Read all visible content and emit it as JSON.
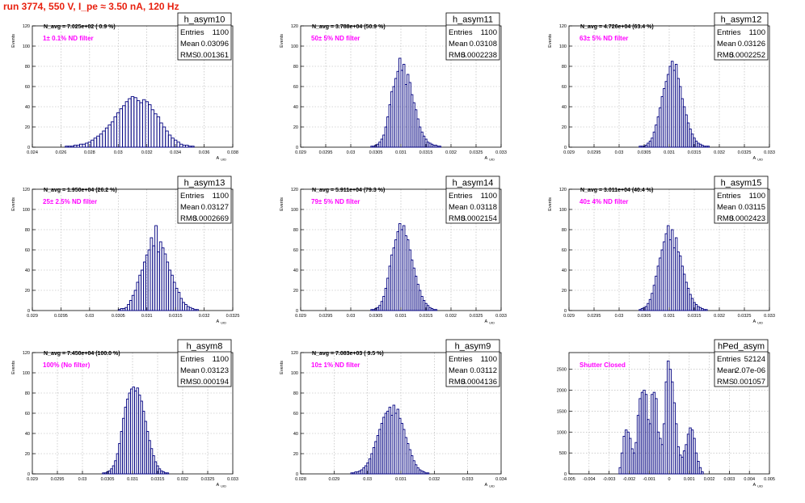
{
  "page_title": "run 3774,   550 V, I_pe ≈ 3.50 nA, 120 Hz",
  "label_color": "#ff00ff",
  "line_color": "#000080",
  "chart_data": [
    {
      "type": "bar",
      "hist_name": "h_asym10",
      "nav_text": "N_avg = 7.025e+02 ( 0.9 %)",
      "filter_text": "1± 0.1% ND filter",
      "xlabel": "A",
      "xlabel_sub": "UID",
      "ylabel": "Events",
      "xlim": [
        0.024,
        0.038
      ],
      "ylim": [
        0,
        120
      ],
      "xticks": [
        "0.024",
        "0.026",
        "0.028",
        "0.03",
        "0.032",
        "0.034",
        "0.036",
        "0.038"
      ],
      "yticks": [
        "0",
        "20",
        "40",
        "60",
        "80",
        "100",
        "120"
      ],
      "stats": [
        [
          "Entries",
          "1100"
        ],
        [
          "Mean",
          "0.03096"
        ],
        [
          "RMS",
          "0.001361"
        ]
      ],
      "bins": {
        "start": 0.0245,
        "width": 0.0002,
        "values": [
          0,
          0,
          0,
          0,
          0,
          0,
          0,
          0,
          0,
          1,
          1,
          1,
          2,
          2,
          3,
          3,
          4,
          5,
          7,
          9,
          11,
          13,
          16,
          19,
          22,
          25,
          30,
          34,
          38,
          41,
          45,
          48,
          50,
          49,
          46,
          44,
          47,
          45,
          42,
          37,
          33,
          30,
          24,
          20,
          16,
          12,
          9,
          7,
          5,
          3,
          2,
          2,
          1,
          1,
          0,
          0,
          0,
          0,
          0,
          0,
          0,
          0,
          0,
          0,
          0,
          0,
          0
        ]
      }
    },
    {
      "type": "bar",
      "hist_name": "h_asym11",
      "nav_text": "N_avg = 3.788e+04 (50.9 %)",
      "filter_text": "50± 5% ND filter",
      "xlabel": "A",
      "xlabel_sub": "UID",
      "ylabel": "Events",
      "xlim": [
        0.029,
        0.033
      ],
      "ylim": [
        0,
        120
      ],
      "xticks": [
        "0.029",
        "0.0295",
        "0.03",
        "0.0305",
        "0.031",
        "0.0315",
        "0.032",
        "0.0325",
        "0.033"
      ],
      "yticks": [
        "0",
        "20",
        "40",
        "60",
        "80",
        "100",
        "120"
      ],
      "stats": [
        [
          "Entries",
          "1100"
        ],
        [
          "Mean",
          "0.03108"
        ],
        [
          "RMS",
          "0.0002238"
        ]
      ],
      "bins": {
        "start": 0.0304,
        "width": 4e-05,
        "values": [
          1,
          1,
          2,
          3,
          5,
          8,
          12,
          20,
          30,
          42,
          55,
          60,
          68,
          75,
          88,
          76,
          82,
          62,
          72,
          64,
          52,
          44,
          37,
          28,
          20,
          15,
          11,
          8,
          5,
          4,
          3,
          2,
          2,
          1,
          1,
          0
        ]
      }
    },
    {
      "type": "bar",
      "hist_name": "h_asym12",
      "nav_text": "N_avg = 4.726e+04 (63.4 %)",
      "filter_text": "63± 5% ND filter",
      "xlabel": "A",
      "xlabel_sub": "UID",
      "ylabel": "Events",
      "xlim": [
        0.029,
        0.033
      ],
      "ylim": [
        0,
        120
      ],
      "xticks": [
        "0.029",
        "0.0295",
        "0.03",
        "0.0305",
        "0.031",
        "0.0315",
        "0.032",
        "0.0325",
        "0.033"
      ],
      "yticks": [
        "0",
        "20",
        "40",
        "60",
        "80",
        "100",
        "120"
      ],
      "stats": [
        [
          "Entries",
          "1100"
        ],
        [
          "Mean",
          "0.03126"
        ],
        [
          "RMS",
          "0.0002252"
        ]
      ],
      "bins": {
        "start": 0.0304,
        "width": 4e-05,
        "values": [
          1,
          1,
          1,
          2,
          4,
          6,
          9,
          15,
          22,
          30,
          39,
          50,
          58,
          65,
          72,
          80,
          85,
          76,
          82,
          68,
          60,
          48,
          40,
          32,
          24,
          18,
          13,
          9,
          6,
          4,
          3,
          2,
          1,
          1,
          1,
          0
        ]
      }
    },
    {
      "type": "bar",
      "hist_name": "h_asym13",
      "nav_text": "N_avg = 1.950e+04 (26.2 %)",
      "filter_text": "25± 2.5% ND filter",
      "xlabel": "A",
      "xlabel_sub": "UID",
      "ylabel": "Events",
      "xlim": [
        0.029,
        0.0325
      ],
      "ylim": [
        0,
        120
      ],
      "xticks": [
        "0.029",
        "0.0295",
        "0.03",
        "0.0305",
        "0.031",
        "0.0315",
        "0.032",
        "0.0325"
      ],
      "yticks": [
        "0",
        "20",
        "40",
        "60",
        "80",
        "100",
        "120"
      ],
      "stats": [
        [
          "Entries",
          "1100"
        ],
        [
          "Mean",
          "0.03127"
        ],
        [
          "RMS",
          "0.0002669"
        ]
      ],
      "bins": {
        "start": 0.0305,
        "width": 4e-05,
        "values": [
          1,
          2,
          2,
          3,
          6,
          10,
          15,
          20,
          28,
          35,
          40,
          48,
          55,
          60,
          72,
          64,
          84,
          58,
          68,
          62,
          56,
          48,
          40,
          35,
          28,
          22,
          18,
          12,
          8,
          6,
          4,
          3,
          2,
          1,
          1,
          0
        ]
      }
    },
    {
      "type": "bar",
      "hist_name": "h_asym14",
      "nav_text": "N_avg = 5.911e+04 (79.3 %)",
      "filter_text": "79± 5% ND filter",
      "xlabel": "A",
      "xlabel_sub": "UID",
      "ylabel": "Events",
      "xlim": [
        0.029,
        0.033
      ],
      "ylim": [
        0,
        120
      ],
      "xticks": [
        "0.029",
        "0.0295",
        "0.03",
        "0.0305",
        "0.031",
        "0.0315",
        "0.032",
        "0.0325",
        "0.033"
      ],
      "yticks": [
        "0",
        "20",
        "40",
        "60",
        "80",
        "100",
        "120"
      ],
      "stats": [
        [
          "Entries",
          "1100"
        ],
        [
          "Mean",
          "0.03118"
        ],
        [
          "RMS",
          "0.0002154"
        ]
      ],
      "bins": {
        "start": 0.0304,
        "width": 4e-05,
        "values": [
          1,
          1,
          2,
          3,
          5,
          9,
          14,
          22,
          32,
          44,
          55,
          62,
          70,
          78,
          86,
          80,
          84,
          74,
          70,
          60,
          50,
          42,
          34,
          26,
          20,
          14,
          10,
          7,
          5,
          3,
          2,
          1,
          1,
          0,
          0,
          0
        ]
      }
    },
    {
      "type": "bar",
      "hist_name": "h_asym15",
      "nav_text": "N_avg = 3.011e+04 (40.4 %)",
      "filter_text": "40± 4% ND filter",
      "xlabel": "A",
      "xlabel_sub": "UID",
      "ylabel": "Events",
      "xlim": [
        0.029,
        0.033
      ],
      "ylim": [
        0,
        120
      ],
      "xticks": [
        "0.029",
        "0.0295",
        "0.03",
        "0.0305",
        "0.031",
        "0.0315",
        "0.032",
        "0.0325",
        "0.033"
      ],
      "yticks": [
        "0",
        "20",
        "40",
        "60",
        "80",
        "100",
        "120"
      ],
      "stats": [
        [
          "Entries",
          "1100"
        ],
        [
          "Mean",
          "0.03115"
        ],
        [
          "RMS",
          "0.0002423"
        ]
      ],
      "bins": {
        "start": 0.0304,
        "width": 4e-05,
        "values": [
          1,
          2,
          3,
          4,
          7,
          11,
          17,
          25,
          34,
          44,
          52,
          60,
          68,
          76,
          84,
          70,
          80,
          62,
          72,
          58,
          54,
          44,
          36,
          28,
          22,
          16,
          12,
          8,
          6,
          4,
          3,
          2,
          1,
          1,
          0,
          0
        ]
      }
    },
    {
      "type": "bar",
      "hist_name": "h_asym8",
      "nav_text": "N_avg = 7.450e+04 (100.0 %)",
      "filter_text": "100% (No filter)",
      "xlabel": "A",
      "xlabel_sub": "UID",
      "ylabel": "Events",
      "xlim": [
        0.029,
        0.033
      ],
      "ylim": [
        0,
        120
      ],
      "xticks": [
        "0.029",
        "0.0295",
        "0.03",
        "0.0305",
        "0.031",
        "0.0315",
        "0.032",
        "0.0325",
        "0.033"
      ],
      "yticks": [
        "0",
        "20",
        "40",
        "60",
        "80",
        "100",
        "120"
      ],
      "stats": [
        [
          "Entries",
          "1100"
        ],
        [
          "Mean",
          "0.03123"
        ],
        [
          "RMS",
          "0.000194"
        ]
      ],
      "bins": {
        "start": 0.0304,
        "width": 4e-05,
        "values": [
          1,
          1,
          2,
          3,
          5,
          8,
          13,
          20,
          30,
          42,
          55,
          66,
          74,
          80,
          84,
          86,
          82,
          85,
          78,
          72,
          62,
          52,
          42,
          33,
          25,
          18,
          12,
          8,
          5,
          3,
          2,
          1,
          1,
          0,
          0,
          0
        ]
      }
    },
    {
      "type": "bar",
      "hist_name": "h_asym9",
      "nav_text": "N_avg = 7.083e+03 ( 9.5 %)",
      "filter_text": "10± 1% ND filter",
      "xlabel": "A",
      "xlabel_sub": "UID",
      "ylabel": "Events",
      "xlim": [
        0.028,
        0.034
      ],
      "ylim": [
        0,
        120
      ],
      "xticks": [
        "0.028",
        "0.029",
        "0.03",
        "0.031",
        "0.032",
        "0.033",
        "0.034"
      ],
      "yticks": [
        "0",
        "20",
        "40",
        "60",
        "80",
        "100",
        "120"
      ],
      "stats": [
        [
          "Entries",
          "1100"
        ],
        [
          "Mean",
          "0.03112"
        ],
        [
          "RMS",
          "0.0004136"
        ]
      ],
      "bins": {
        "start": 0.0295,
        "width": 6e-05,
        "values": [
          1,
          1,
          2,
          2,
          3,
          4,
          6,
          8,
          11,
          15,
          20,
          26,
          32,
          38,
          44,
          50,
          56,
          60,
          62,
          66,
          58,
          68,
          60,
          64,
          55,
          50,
          44,
          36,
          30,
          24,
          18,
          13,
          9,
          6,
          4,
          3,
          2,
          1,
          1,
          0,
          0,
          0,
          0,
          0,
          0,
          0
        ]
      }
    },
    {
      "type": "bar",
      "hist_name": "hPed_asym",
      "nav_text": "",
      "filter_text": "Shutter Closed",
      "xlabel": "A",
      "xlabel_sub": "UID",
      "ylabel": "",
      "xlim": [
        -0.005,
        0.005
      ],
      "ylim": [
        0,
        2900
      ],
      "xticks": [
        "-0.005",
        "-0.004",
        "-0.003",
        "-0.002",
        "-0.001",
        "0",
        "0.001",
        "0.002",
        "0.003",
        "0.004",
        "0.005"
      ],
      "yticks": [
        "0",
        "500",
        "1000",
        "1500",
        "2000",
        "2500"
      ],
      "stats": [
        [
          "Entries",
          "52124"
        ],
        [
          "Mean",
          "2.07e-06"
        ],
        [
          "RMS",
          "0.001057"
        ]
      ],
      "bins": {
        "start": -0.0026,
        "width": 0.0001,
        "values": [
          0,
          150,
          500,
          900,
          1050,
          1000,
          850,
          600,
          500,
          750,
          1400,
          1800,
          1950,
          2000,
          1900,
          1300,
          1200,
          1900,
          1950,
          1800,
          1000,
          850,
          700,
          1200,
          2200,
          2700,
          2500,
          2200,
          1700,
          1200,
          650,
          450,
          400,
          550,
          700,
          950,
          1100,
          1050,
          850,
          500,
          300,
          150,
          50,
          0
        ]
      }
    }
  ]
}
